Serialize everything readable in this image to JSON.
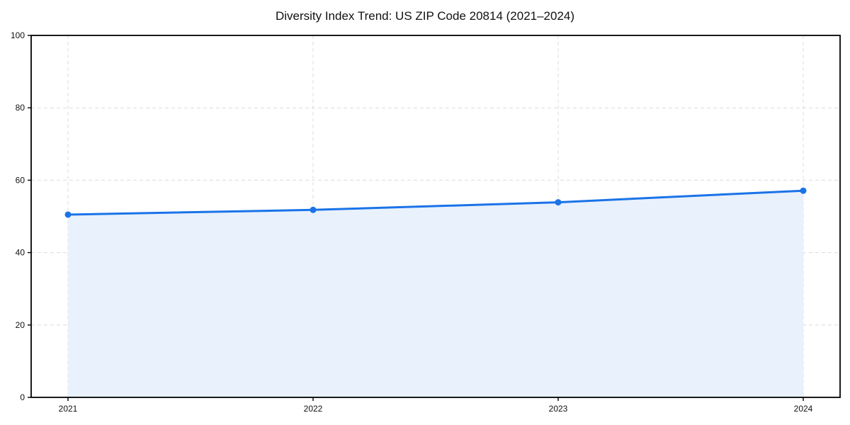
{
  "title": "Diversity Index Trend: US ZIP Code 20814 (2021–2024)",
  "chart_data": {
    "type": "area",
    "title": "Diversity Index Trend: US ZIP Code 20814 (2021–2024)",
    "x": [
      2021,
      2022,
      2023,
      2024
    ],
    "x_tick_labels": [
      "2021",
      "2022",
      "2023",
      "2024"
    ],
    "series": [
      {
        "name": "Diversity Index",
        "values": [
          50.5,
          51.8,
          53.9,
          57.1
        ]
      }
    ],
    "xlabel": "",
    "ylabel": "",
    "ylim": [
      0,
      100
    ],
    "yticks": [
      0,
      20,
      40,
      60,
      80,
      100
    ],
    "y_tick_labels": [
      "0",
      "20",
      "40",
      "60",
      "80",
      "100"
    ],
    "grid": "dashed",
    "legend_position": "none",
    "marker": "circle",
    "colors": {
      "line": "#1a73e8",
      "marker": "#1a73e8",
      "fill": "#e8f1fc",
      "grid": "#dcdcdc",
      "axis": "#000000",
      "text": "#111111",
      "background": "#ffffff"
    }
  }
}
